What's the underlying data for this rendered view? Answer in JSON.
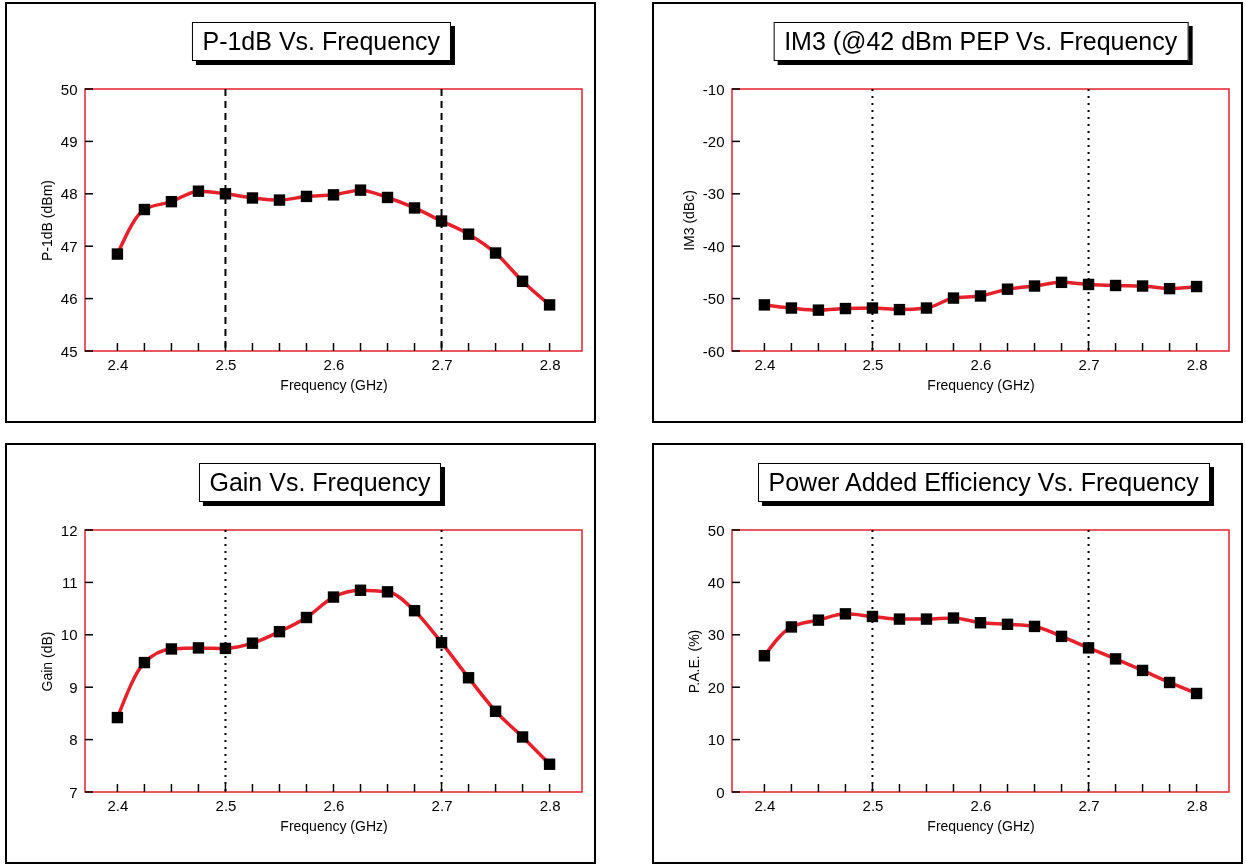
{
  "chart_data": [
    {
      "type": "line",
      "title": "P-1dB Vs. Frequency",
      "xlabel": "Frequency (GHz)",
      "ylabel": "P-1dB (dBm)",
      "x": [
        2.4,
        2.425,
        2.45,
        2.475,
        2.5,
        2.525,
        2.55,
        2.575,
        2.6,
        2.625,
        2.65,
        2.675,
        2.7,
        2.725,
        2.75,
        2.775,
        2.8
      ],
      "series": [
        {
          "color": "#e8202a",
          "values": [
            46.85,
            47.7,
            47.85,
            48.05,
            48.0,
            47.92,
            47.88,
            47.95,
            47.98,
            48.07,
            47.93,
            47.73,
            47.48,
            47.23,
            46.87,
            46.33,
            45.88
          ]
        }
      ],
      "xlim": [
        2.37,
        2.83
      ],
      "ylim": [
        45,
        50
      ],
      "yticks": [
        45,
        46,
        47,
        48,
        49,
        50
      ],
      "xticks": [
        2.4,
        {
          "value": 2.425,
          "label": null
        },
        {
          "value": 2.45,
          "label": null
        },
        {
          "value": 2.475,
          "label": null
        },
        2.5,
        {
          "value": 2.525,
          "label": null
        },
        {
          "value": 2.55,
          "label": null
        },
        {
          "value": 2.575,
          "label": null
        },
        2.6,
        {
          "value": 2.625,
          "label": null
        },
        {
          "value": 2.65,
          "label": null
        },
        {
          "value": 2.675,
          "label": null
        },
        2.7,
        {
          "value": 2.725,
          "label": null
        },
        {
          "value": 2.75,
          "label": null
        },
        {
          "value": 2.775,
          "label": null
        },
        2.8
      ],
      "ref_lines": [
        {
          "axis": "x",
          "value": 2.5,
          "line_style": "dashed"
        },
        {
          "axis": "x",
          "value": 2.7,
          "line_style": "dashed"
        }
      ],
      "marker": "square",
      "grid": false
    },
    {
      "type": "line",
      "title": "IM3 (@42 dBm PEP Vs. Frequency",
      "xlabel": "Frequency (GHz)",
      "ylabel": "IM3 (dBc)",
      "x": [
        2.4,
        2.425,
        2.45,
        2.475,
        2.5,
        2.525,
        2.55,
        2.575,
        2.6,
        2.625,
        2.65,
        2.675,
        2.7,
        2.725,
        2.75,
        2.775,
        2.8
      ],
      "series": [
        {
          "color": "#e8202a",
          "values": [
            -51.2,
            -51.8,
            -52.2,
            -51.9,
            -51.8,
            -52.1,
            -51.8,
            -49.9,
            -49.5,
            -48.2,
            -47.6,
            -46.9,
            -47.3,
            -47.5,
            -47.6,
            -48.1,
            -47.7
          ]
        }
      ],
      "xlim": [
        2.37,
        2.83
      ],
      "ylim": [
        -60,
        -10
      ],
      "yticks": [
        -60,
        -50,
        -40,
        -30,
        -20,
        -10
      ],
      "xticks": [
        2.4,
        {
          "value": 2.425,
          "label": null
        },
        {
          "value": 2.45,
          "label": null
        },
        {
          "value": 2.475,
          "label": null
        },
        2.5,
        {
          "value": 2.525,
          "label": null
        },
        {
          "value": 2.55,
          "label": null
        },
        {
          "value": 2.575,
          "label": null
        },
        2.6,
        {
          "value": 2.625,
          "label": null
        },
        {
          "value": 2.65,
          "label": null
        },
        {
          "value": 2.675,
          "label": null
        },
        2.7,
        {
          "value": 2.725,
          "label": null
        },
        {
          "value": 2.75,
          "label": null
        },
        {
          "value": 2.775,
          "label": null
        },
        2.8
      ],
      "ref_lines": [
        {
          "axis": "x",
          "value": 2.5,
          "line_style": "dotted"
        },
        {
          "axis": "x",
          "value": 2.7,
          "line_style": "dotted"
        }
      ],
      "marker": "square",
      "grid": false
    },
    {
      "type": "line",
      "title": "Gain Vs. Frequency",
      "xlabel": "Frequency (GHz)",
      "ylabel": "Gain (dB)",
      "x": [
        2.4,
        2.425,
        2.45,
        2.475,
        2.5,
        2.525,
        2.55,
        2.575,
        2.6,
        2.625,
        2.65,
        2.675,
        2.7,
        2.725,
        2.75,
        2.775,
        2.8
      ],
      "series": [
        {
          "color": "#e8202a",
          "values": [
            8.42,
            9.47,
            9.73,
            9.75,
            9.74,
            9.84,
            10.06,
            10.33,
            10.72,
            10.85,
            10.82,
            10.46,
            9.85,
            9.18,
            8.54,
            8.05,
            7.53
          ]
        }
      ],
      "xlim": [
        2.37,
        2.83
      ],
      "ylim": [
        7,
        12
      ],
      "yticks": [
        7,
        8,
        9,
        10,
        11,
        12
      ],
      "xticks": [
        2.4,
        {
          "value": 2.425,
          "label": null
        },
        {
          "value": 2.45,
          "label": null
        },
        {
          "value": 2.475,
          "label": null
        },
        2.5,
        {
          "value": 2.525,
          "label": null
        },
        {
          "value": 2.55,
          "label": null
        },
        {
          "value": 2.575,
          "label": null
        },
        2.6,
        {
          "value": 2.625,
          "label": null
        },
        {
          "value": 2.65,
          "label": null
        },
        {
          "value": 2.675,
          "label": null
        },
        2.7,
        {
          "value": 2.725,
          "label": null
        },
        {
          "value": 2.75,
          "label": null
        },
        {
          "value": 2.775,
          "label": null
        },
        2.8
      ],
      "ref_lines": [
        {
          "axis": "x",
          "value": 2.5,
          "line_style": "dotted"
        },
        {
          "axis": "x",
          "value": 2.7,
          "line_style": "dotted"
        }
      ],
      "marker": "square",
      "grid": false
    },
    {
      "type": "line",
      "title": "Power Added Efficiency Vs. Frequency",
      "xlabel": "Frequency (GHz)",
      "ylabel": "P.A.E. (%)",
      "x": [
        2.4,
        2.425,
        2.45,
        2.475,
        2.5,
        2.525,
        2.55,
        2.575,
        2.6,
        2.625,
        2.65,
        2.675,
        2.7,
        2.725,
        2.75,
        2.775,
        2.8
      ],
      "series": [
        {
          "color": "#e8202a",
          "values": [
            26.0,
            31.5,
            32.8,
            34.0,
            33.5,
            33.0,
            33.0,
            33.2,
            32.3,
            32.0,
            31.6,
            29.7,
            27.5,
            25.4,
            23.2,
            20.9,
            18.8
          ]
        }
      ],
      "xlim": [
        2.37,
        2.83
      ],
      "ylim": [
        0,
        50
      ],
      "yticks": [
        0,
        10,
        20,
        30,
        40,
        50
      ],
      "xticks": [
        2.4,
        {
          "value": 2.425,
          "label": null
        },
        {
          "value": 2.45,
          "label": null
        },
        {
          "value": 2.475,
          "label": null
        },
        2.5,
        {
          "value": 2.525,
          "label": null
        },
        {
          "value": 2.55,
          "label": null
        },
        {
          "value": 2.575,
          "label": null
        },
        2.6,
        {
          "value": 2.625,
          "label": null
        },
        {
          "value": 2.65,
          "label": null
        },
        {
          "value": 2.675,
          "label": null
        },
        2.7,
        {
          "value": 2.725,
          "label": null
        },
        {
          "value": 2.75,
          "label": null
        },
        {
          "value": 2.775,
          "label": null
        },
        2.8
      ],
      "ref_lines": [
        {
          "axis": "x",
          "value": 2.5,
          "line_style": "dotted"
        },
        {
          "axis": "x",
          "value": 2.7,
          "line_style": "dotted"
        }
      ],
      "marker": "square",
      "grid": false
    }
  ]
}
